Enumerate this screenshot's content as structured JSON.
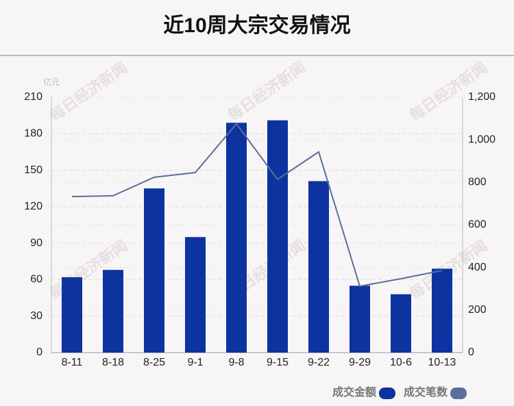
{
  "chart_data": {
    "type": "bar-line",
    "title": "近10周大宗交易情况",
    "y_unit": "亿元",
    "watermark": "每日经济新闻",
    "categories": [
      "8-11",
      "8-18",
      "8-25",
      "9-1",
      "9-8",
      "9-15",
      "9-22",
      "9-29",
      "10-6",
      "10-13"
    ],
    "series": [
      {
        "name": "成交金额",
        "type": "bar",
        "color": "#0c33a0",
        "values": [
          62,
          68,
          135,
          95,
          189,
          191,
          141,
          55,
          48,
          69
        ]
      },
      {
        "name": "成交笔数",
        "type": "line",
        "axis": "y2",
        "color": "#5a6f9c",
        "values": [
          733,
          737,
          824,
          846,
          1075,
          814,
          943,
          312,
          347,
          386
        ]
      }
    ],
    "ylim": [
      0,
      210
    ],
    "yticks": [
      0,
      30,
      60,
      90,
      120,
      150,
      180,
      210
    ],
    "y2lim": [
      0,
      1200
    ],
    "y2ticks": [
      0,
      200,
      400,
      600,
      800,
      {
        "value": 1000,
        "label": "1,000"
      },
      {
        "value": 1200,
        "label": "1,200"
      }
    ],
    "grid": true
  }
}
